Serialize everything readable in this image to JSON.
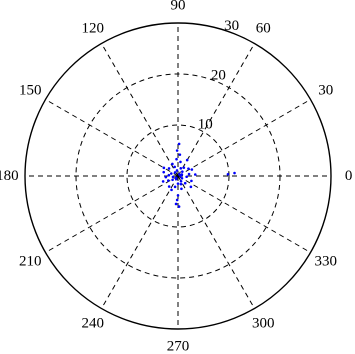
{
  "chart_data": {
    "type": "scatter",
    "coordinate_system": "polar",
    "theta_unit": "degrees",
    "r_range": [
      0,
      30
    ],
    "radial_ticks": [
      10,
      20,
      30
    ],
    "angle_ticks": [
      0,
      30,
      60,
      90,
      120,
      150,
      180,
      210,
      240,
      270,
      300,
      330
    ],
    "grid": true,
    "marker_color": "#0000ff",
    "series": [
      {
        "points": [
          {
            "theta": 0,
            "r": 0.5
          },
          {
            "theta": 20,
            "r": 0.8
          },
          {
            "theta": 45,
            "r": 1.2
          },
          {
            "theta": 70,
            "r": 1.6
          },
          {
            "theta": 100,
            "r": 1.1
          },
          {
            "theta": 130,
            "r": 0.9
          },
          {
            "theta": 160,
            "r": 1.4
          },
          {
            "theta": 190,
            "r": 1.0
          },
          {
            "theta": 215,
            "r": 1.3
          },
          {
            "theta": 240,
            "r": 0.7
          },
          {
            "theta": 270,
            "r": 1.5
          },
          {
            "theta": 300,
            "r": 1.2
          },
          {
            "theta": 330,
            "r": 0.9
          },
          {
            "theta": 355,
            "r": 1.7
          },
          {
            "theta": 10,
            "r": 2.2
          },
          {
            "theta": 35,
            "r": 2.5
          },
          {
            "theta": 55,
            "r": 2.0
          },
          {
            "theta": 80,
            "r": 2.8
          },
          {
            "theta": 95,
            "r": 3.3
          },
          {
            "theta": 115,
            "r": 2.6
          },
          {
            "theta": 140,
            "r": 2.3
          },
          {
            "theta": 165,
            "r": 2.9
          },
          {
            "theta": 185,
            "r": 2.4
          },
          {
            "theta": 205,
            "r": 2.1
          },
          {
            "theta": 230,
            "r": 2.7
          },
          {
            "theta": 255,
            "r": 2.2
          },
          {
            "theta": 285,
            "r": 2.6
          },
          {
            "theta": 315,
            "r": 2.0
          },
          {
            "theta": 340,
            "r": 2.8
          },
          {
            "theta": 5,
            "r": 3.4
          },
          {
            "theta": 25,
            "r": 3.0
          },
          {
            "theta": 150,
            "r": 3.2
          },
          {
            "theta": 200,
            "r": 3.1
          },
          {
            "theta": 245,
            "r": 3.0
          },
          {
            "theta": 320,
            "r": 3.3
          },
          {
            "theta": 60,
            "r": 3.6
          },
          {
            "theta": 85,
            "r": 4.2
          },
          {
            "theta": 92,
            "r": 5.0
          },
          {
            "theta": 88,
            "r": 6.3
          },
          {
            "theta": 270,
            "r": 3.8
          },
          {
            "theta": 268,
            "r": 4.7
          },
          {
            "theta": 272,
            "r": 6.0
          },
          {
            "theta": 266,
            "r": 5.5
          },
          {
            "theta": 2,
            "r": 9.8
          },
          {
            "theta": 3,
            "r": 11.1
          },
          {
            "theta": 110,
            "r": 1.9
          },
          {
            "theta": 175,
            "r": 1.8
          },
          {
            "theta": 290,
            "r": 1.7
          },
          {
            "theta": 50,
            "r": 0.4
          },
          {
            "theta": 225,
            "r": 0.5
          }
        ]
      }
    ]
  }
}
